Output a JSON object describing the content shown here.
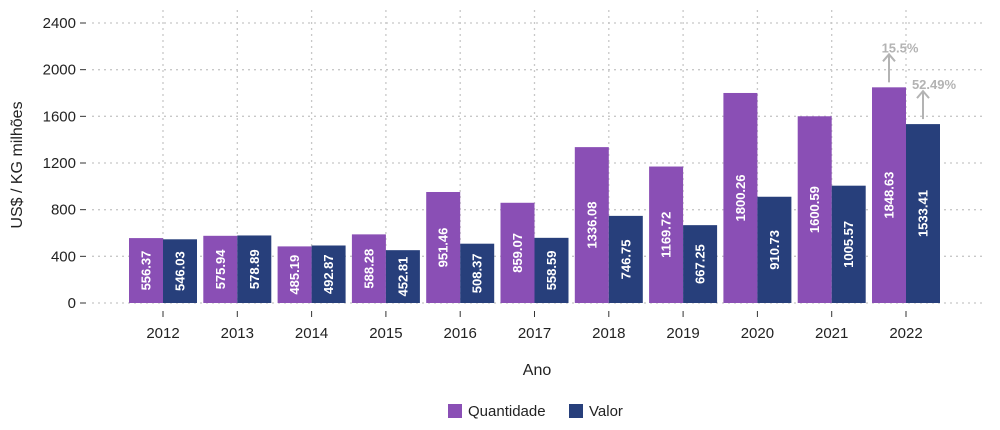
{
  "chart_data": {
    "type": "bar",
    "categories": [
      "2012",
      "2013",
      "2014",
      "2015",
      "2016",
      "2017",
      "2018",
      "2019",
      "2020",
      "2021",
      "2022"
    ],
    "series": [
      {
        "name": "Quantidade",
        "color": "#8a4fb5",
        "values": [
          556.37,
          575.94,
          485.19,
          588.28,
          951.46,
          859.07,
          1336.08,
          1169.72,
          1800.26,
          1600.59,
          1848.63
        ],
        "labels": [
          "556.37",
          "575.94",
          "485.19",
          "588.28",
          "951.46",
          "859.07",
          "1336.08",
          "1169.72",
          "1800.26",
          "1600.59",
          "1848.63"
        ]
      },
      {
        "name": "Valor",
        "color": "#273f7b",
        "values": [
          546.03,
          578.89,
          492.87,
          452.81,
          508.37,
          558.59,
          746.75,
          667.25,
          910.73,
          1005.57,
          1533.41
        ],
        "labels": [
          "546.03",
          "578.89",
          "492.87",
          "452.81",
          "508.37",
          "558.59",
          "746.75",
          "667.25",
          "910.73",
          "1005.57",
          "1533.41"
        ]
      }
    ],
    "xlabel": "Ano",
    "ylabel": "US$ / KG milhões",
    "ylim": [
      0,
      2400
    ],
    "yticks": [
      "0",
      "400",
      "800",
      "1200",
      "1600",
      "2000",
      "2400"
    ],
    "grid": true,
    "legend_position": "bottom",
    "annotations": [
      {
        "series": "Quantidade",
        "category": "2022",
        "text": "15.5%",
        "color": "#b3b3b3"
      },
      {
        "series": "Valor",
        "category": "2022",
        "text": "52.49%",
        "color": "#b3b3b3"
      }
    ]
  }
}
